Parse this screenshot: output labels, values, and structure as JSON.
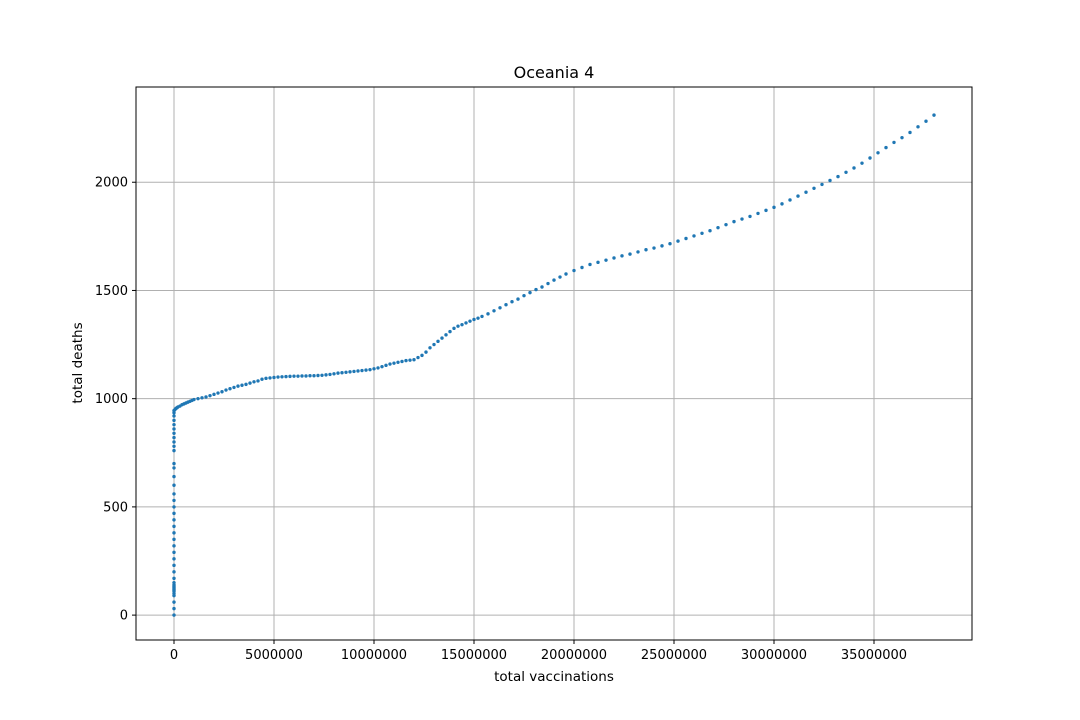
{
  "chart_data": {
    "type": "scatter",
    "title": "Oceania 4",
    "xlabel": "total vaccinations",
    "ylabel": "total deaths",
    "xlim": [
      -1900000,
      39900000
    ],
    "ylim": [
      -115,
      2440
    ],
    "grid": true,
    "marker_color": "#1f77b4",
    "x_ticks": [
      0,
      5000000,
      10000000,
      15000000,
      20000000,
      25000000,
      30000000,
      35000000
    ],
    "x_tick_labels": [
      "0",
      "5000000",
      "10000000",
      "15000000",
      "20000000",
      "25000000",
      "30000000",
      "35000000"
    ],
    "y_ticks": [
      0,
      500,
      1000,
      1500,
      2000
    ],
    "y_tick_labels": [
      "0",
      "500",
      "1000",
      "1500",
      "2000"
    ],
    "series": [
      {
        "points": [
          [
            0,
            0
          ],
          [
            0,
            30
          ],
          [
            0,
            60
          ],
          [
            0,
            90
          ],
          [
            0,
            100
          ],
          [
            0,
            110
          ],
          [
            0,
            115
          ],
          [
            0,
            120
          ],
          [
            0,
            125
          ],
          [
            0,
            130
          ],
          [
            0,
            135
          ],
          [
            0,
            140
          ],
          [
            0,
            150
          ],
          [
            0,
            170
          ],
          [
            0,
            200
          ],
          [
            0,
            230
          ],
          [
            0,
            260
          ],
          [
            0,
            290
          ],
          [
            0,
            320
          ],
          [
            0,
            350
          ],
          [
            0,
            380
          ],
          [
            0,
            410
          ],
          [
            0,
            440
          ],
          [
            0,
            470
          ],
          [
            0,
            500
          ],
          [
            0,
            530
          ],
          [
            0,
            560
          ],
          [
            0,
            600
          ],
          [
            0,
            640
          ],
          [
            0,
            680
          ],
          [
            0,
            700
          ],
          [
            0,
            760
          ],
          [
            0,
            780
          ],
          [
            0,
            800
          ],
          [
            0,
            820
          ],
          [
            0,
            840
          ],
          [
            0,
            860
          ],
          [
            0,
            880
          ],
          [
            0,
            900
          ],
          [
            0,
            920
          ],
          [
            0,
            935
          ],
          [
            0,
            945
          ],
          [
            50000,
            950
          ],
          [
            100000,
            955
          ],
          [
            150000,
            958
          ],
          [
            200000,
            962
          ],
          [
            300000,
            966
          ],
          [
            400000,
            972
          ],
          [
            500000,
            976
          ],
          [
            600000,
            980
          ],
          [
            700000,
            984
          ],
          [
            800000,
            988
          ],
          [
            900000,
            992
          ],
          [
            1000000,
            996
          ],
          [
            1200000,
            1000
          ],
          [
            1400000,
            1004
          ],
          [
            1600000,
            1008
          ],
          [
            1800000,
            1014
          ],
          [
            2000000,
            1020
          ],
          [
            2200000,
            1026
          ],
          [
            2400000,
            1032
          ],
          [
            2600000,
            1040
          ],
          [
            2800000,
            1046
          ],
          [
            3000000,
            1052
          ],
          [
            3200000,
            1058
          ],
          [
            3400000,
            1062
          ],
          [
            3600000,
            1066
          ],
          [
            3800000,
            1072
          ],
          [
            4000000,
            1078
          ],
          [
            4200000,
            1082
          ],
          [
            4400000,
            1090
          ],
          [
            4600000,
            1094
          ],
          [
            4800000,
            1096
          ],
          [
            5000000,
            1098
          ],
          [
            5200000,
            1100
          ],
          [
            5400000,
            1101
          ],
          [
            5600000,
            1102
          ],
          [
            5800000,
            1103
          ],
          [
            6000000,
            1104
          ],
          [
            6200000,
            1104
          ],
          [
            6400000,
            1105
          ],
          [
            6600000,
            1105
          ],
          [
            6800000,
            1106
          ],
          [
            7000000,
            1106
          ],
          [
            7200000,
            1107
          ],
          [
            7400000,
            1108
          ],
          [
            7600000,
            1110
          ],
          [
            7800000,
            1112
          ],
          [
            8000000,
            1115
          ],
          [
            8200000,
            1118
          ],
          [
            8400000,
            1120
          ],
          [
            8600000,
            1122
          ],
          [
            8800000,
            1124
          ],
          [
            9000000,
            1126
          ],
          [
            9200000,
            1128
          ],
          [
            9400000,
            1130
          ],
          [
            9600000,
            1132
          ],
          [
            9800000,
            1134
          ],
          [
            10000000,
            1138
          ],
          [
            10200000,
            1142
          ],
          [
            10400000,
            1148
          ],
          [
            10600000,
            1154
          ],
          [
            10800000,
            1160
          ],
          [
            11000000,
            1164
          ],
          [
            11200000,
            1168
          ],
          [
            11400000,
            1172
          ],
          [
            11600000,
            1176
          ],
          [
            11800000,
            1178
          ],
          [
            12000000,
            1180
          ],
          [
            12200000,
            1190
          ],
          [
            12400000,
            1200
          ],
          [
            12600000,
            1215
          ],
          [
            12800000,
            1235
          ],
          [
            13000000,
            1250
          ],
          [
            13200000,
            1265
          ],
          [
            13400000,
            1280
          ],
          [
            13600000,
            1295
          ],
          [
            13800000,
            1310
          ],
          [
            14000000,
            1325
          ],
          [
            14200000,
            1335
          ],
          [
            14400000,
            1342
          ],
          [
            14600000,
            1350
          ],
          [
            14800000,
            1358
          ],
          [
            15000000,
            1366
          ],
          [
            15200000,
            1372
          ],
          [
            15400000,
            1380
          ],
          [
            15700000,
            1392
          ],
          [
            16000000,
            1406
          ],
          [
            16300000,
            1420
          ],
          [
            16600000,
            1434
          ],
          [
            16900000,
            1448
          ],
          [
            17200000,
            1460
          ],
          [
            17500000,
            1476
          ],
          [
            17800000,
            1490
          ],
          [
            18100000,
            1504
          ],
          [
            18400000,
            1516
          ],
          [
            18700000,
            1532
          ],
          [
            19000000,
            1548
          ],
          [
            19300000,
            1562
          ],
          [
            19600000,
            1576
          ],
          [
            20000000,
            1592
          ],
          [
            20400000,
            1606
          ],
          [
            20800000,
            1620
          ],
          [
            21200000,
            1630
          ],
          [
            21600000,
            1640
          ],
          [
            22000000,
            1650
          ],
          [
            22400000,
            1660
          ],
          [
            22800000,
            1668
          ],
          [
            23200000,
            1678
          ],
          [
            23600000,
            1688
          ],
          [
            24000000,
            1696
          ],
          [
            24400000,
            1706
          ],
          [
            24800000,
            1716
          ],
          [
            25200000,
            1728
          ],
          [
            25600000,
            1740
          ],
          [
            26000000,
            1752
          ],
          [
            26400000,
            1764
          ],
          [
            26800000,
            1776
          ],
          [
            27200000,
            1790
          ],
          [
            27600000,
            1804
          ],
          [
            28000000,
            1818
          ],
          [
            28400000,
            1830
          ],
          [
            28800000,
            1842
          ],
          [
            29200000,
            1856
          ],
          [
            29600000,
            1870
          ],
          [
            30000000,
            1884
          ],
          [
            30400000,
            1900
          ],
          [
            30800000,
            1918
          ],
          [
            31200000,
            1936
          ],
          [
            31600000,
            1954
          ],
          [
            32000000,
            1972
          ],
          [
            32400000,
            1990
          ],
          [
            32800000,
            2008
          ],
          [
            33200000,
            2026
          ],
          [
            33600000,
            2046
          ],
          [
            34000000,
            2066
          ],
          [
            34400000,
            2088
          ],
          [
            34800000,
            2112
          ],
          [
            35200000,
            2136
          ],
          [
            35600000,
            2160
          ],
          [
            36000000,
            2184
          ],
          [
            36400000,
            2206
          ],
          [
            36800000,
            2230
          ],
          [
            37200000,
            2256
          ],
          [
            37600000,
            2282
          ],
          [
            38000000,
            2310
          ]
        ]
      }
    ]
  }
}
